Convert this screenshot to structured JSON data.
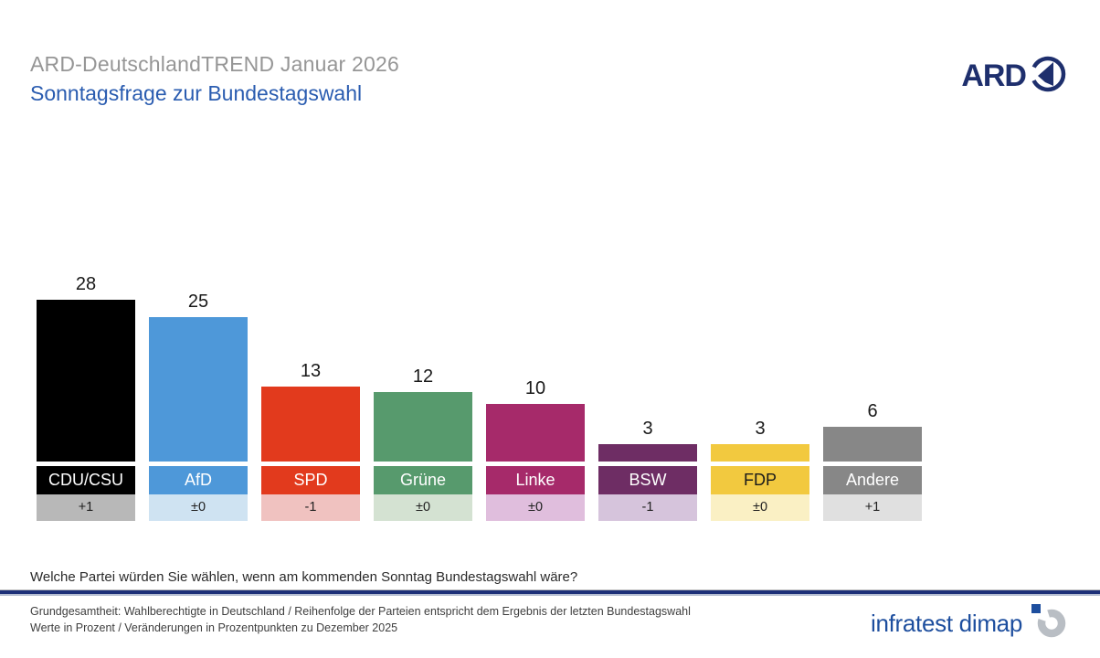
{
  "header": {
    "title": "ARD-DeutschlandTREND Januar 2026",
    "subtitle": "Sonntagsfrage zur Bundestagswahl",
    "ard_logo_text": "ARD"
  },
  "chart_data": {
    "type": "bar",
    "title": "Sonntagsfrage zur Bundestagswahl",
    "categories": [
      "CDU/CSU",
      "AfD",
      "SPD",
      "Grüne",
      "Linke",
      "BSW",
      "FDP",
      "Andere"
    ],
    "values": [
      28,
      25,
      13,
      12,
      10,
      3,
      3,
      6
    ],
    "changes": [
      "+1",
      "±0",
      "-1",
      "±0",
      "±0",
      "-1",
      "±0",
      "+1"
    ],
    "bar_colors": [
      "#000000",
      "#4e98d9",
      "#e23a1d",
      "#579a6d",
      "#a62a6a",
      "#6e2d64",
      "#f2c93f",
      "#878787"
    ],
    "label_text_colors": [
      "#ffffff",
      "#ffffff",
      "#ffffff",
      "#ffffff",
      "#ffffff",
      "#ffffff",
      "#1a1a1a",
      "#ffffff"
    ],
    "change_bg_colors": [
      "#b8b8b8",
      "#cfe3f2",
      "#f0c2c0",
      "#d4e2d2",
      "#e0bedd",
      "#d6c4dc",
      "#faf0c4",
      "#e0e0e0"
    ],
    "unit": "Prozent",
    "ylim": [
      0,
      30
    ],
    "grid": false,
    "legend": "none",
    "value_labels_position": "above-bars"
  },
  "question": "Welche Partei würden Sie wählen, wenn am kommenden Sonntag Bundestagswahl wäre?",
  "footer": {
    "line1": "Grundgesamtheit: Wahlberechtigte in Deutschland / Reihenfolge der Parteien entspricht dem Ergebnis der letzten Bundestagswahl",
    "line2": "Werte in Prozent / Veränderungen in Prozentpunkten zu Dezember 2025",
    "brand": "infratest dimap"
  },
  "icons": {
    "ard_das_erste_logo": "circle-with-1",
    "infratest_dimap_logo": "broken-ring-with-blue-square"
  },
  "colors": {
    "title_gray": "#969696",
    "subtitle_blue": "#2a5cb0",
    "ard_navy": "#1e2f6d",
    "divider_navy": "#1d3078",
    "infratest_blue": "#1d4e9e",
    "infratest_ring_gray": "#b9bec4"
  }
}
